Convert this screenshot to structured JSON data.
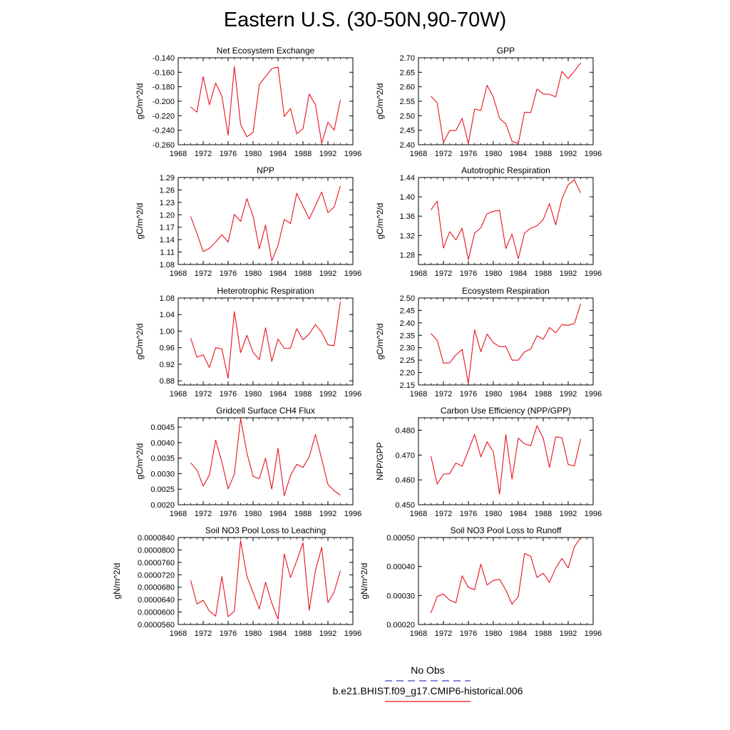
{
  "figure": {
    "title": "Eastern U.S. (30-50N,90-70W)",
    "line_color": "#e8131c",
    "obs_color": "#3b45c8"
  },
  "legend": {
    "obs_label": "No Obs",
    "model_label": "b.e21.BHIST.f09_g17.CMIP6-historical.006"
  },
  "chart_data": [
    {
      "type": "line",
      "title": "Net Ecosystem Exchange",
      "ylabel": "gC/m^2/d",
      "xlim": [
        1968,
        1996
      ],
      "xticks": [
        "1968",
        "1972",
        "1976",
        "1980",
        "1984",
        "1988",
        "1992",
        "1996"
      ],
      "ylim": [
        -0.26,
        -0.14
      ],
      "yticks": [
        "-0.260",
        "-0.240",
        "-0.220",
        "-0.200",
        "-0.180",
        "-0.160",
        "-0.140"
      ],
      "x": [
        1970,
        1971,
        1972,
        1973,
        1974,
        1975,
        1976,
        1977,
        1978,
        1979,
        1980,
        1981,
        1982,
        1983,
        1984,
        1985,
        1986,
        1987,
        1988,
        1989,
        1990,
        1991,
        1992,
        1993,
        1994
      ],
      "series": [
        {
          "values": [
            -0.208,
            -0.215,
            -0.166,
            -0.205,
            -0.175,
            -0.193,
            -0.247,
            -0.152,
            -0.232,
            -0.249,
            -0.243,
            -0.177,
            -0.166,
            -0.155,
            -0.153,
            -0.221,
            -0.21,
            -0.245,
            -0.238,
            -0.19,
            -0.205,
            -0.258,
            -0.229,
            -0.24,
            -0.198
          ]
        }
      ]
    },
    {
      "type": "line",
      "title": "GPP",
      "ylabel": "gC/m^2/d",
      "xlim": [
        1968,
        1996
      ],
      "xticks": [
        "1968",
        "1972",
        "1976",
        "1980",
        "1984",
        "1988",
        "1992",
        "1996"
      ],
      "ylim": [
        2.4,
        2.7
      ],
      "yticks": [
        "2.40",
        "2.45",
        "2.50",
        "2.55",
        "2.60",
        "2.65",
        "2.70"
      ],
      "x": [
        1970,
        1971,
        1972,
        1973,
        1974,
        1975,
        1976,
        1977,
        1978,
        1979,
        1980,
        1981,
        1982,
        1983,
        1984,
        1985,
        1986,
        1987,
        1988,
        1989,
        1990,
        1991,
        1992,
        1993,
        1994
      ],
      "series": [
        {
          "values": [
            2.567,
            2.545,
            2.408,
            2.449,
            2.449,
            2.491,
            2.404,
            2.523,
            2.518,
            2.605,
            2.564,
            2.491,
            2.472,
            2.412,
            2.404,
            2.512,
            2.511,
            2.592,
            2.575,
            2.574,
            2.565,
            2.653,
            2.628,
            2.654,
            2.682
          ]
        }
      ]
    },
    {
      "type": "line",
      "title": "NPP",
      "ylabel": "gC/m^2/d",
      "xlim": [
        1968,
        1996
      ],
      "xticks": [
        "1968",
        "1972",
        "1976",
        "1980",
        "1984",
        "1988",
        "1992",
        "1996"
      ],
      "ylim": [
        1.08,
        1.29
      ],
      "yticks": [
        "1.08",
        "1.11",
        "1.14",
        "1.17",
        "1.20",
        "1.23",
        "1.26",
        "1.29"
      ],
      "x": [
        1970,
        1971,
        1972,
        1973,
        1974,
        1975,
        1976,
        1977,
        1978,
        1979,
        1980,
        1981,
        1982,
        1983,
        1984,
        1985,
        1986,
        1987,
        1988,
        1989,
        1990,
        1991,
        1992,
        1993,
        1994
      ],
      "series": [
        {
          "values": [
            1.196,
            1.155,
            1.111,
            1.119,
            1.134,
            1.152,
            1.134,
            1.201,
            1.184,
            1.239,
            1.197,
            1.118,
            1.175,
            1.089,
            1.126,
            1.189,
            1.179,
            1.252,
            1.221,
            1.19,
            1.222,
            1.255,
            1.205,
            1.219,
            1.27
          ]
        }
      ]
    },
    {
      "type": "line",
      "title": "Autotrophic Respiration",
      "ylabel": "gC/m^2/d",
      "xlim": [
        1968,
        1996
      ],
      "xticks": [
        "1968",
        "1972",
        "1976",
        "1980",
        "1984",
        "1988",
        "1992",
        "1996"
      ],
      "ylim": [
        1.26,
        1.44
      ],
      "yticks": [
        "1.28",
        "1.32",
        "1.36",
        "1.40",
        "1.44"
      ],
      "x": [
        1970,
        1971,
        1972,
        1973,
        1974,
        1975,
        1976,
        1977,
        1978,
        1979,
        1980,
        1981,
        1982,
        1983,
        1984,
        1985,
        1986,
        1987,
        1988,
        1989,
        1990,
        1991,
        1992,
        1993,
        1994
      ],
      "series": [
        {
          "values": [
            1.373,
            1.391,
            1.294,
            1.328,
            1.311,
            1.335,
            1.27,
            1.325,
            1.336,
            1.365,
            1.37,
            1.372,
            1.293,
            1.323,
            1.272,
            1.325,
            1.335,
            1.34,
            1.353,
            1.386,
            1.342,
            1.396,
            1.425,
            1.435,
            1.408
          ]
        }
      ]
    },
    {
      "type": "line",
      "title": "Heterotrophic Respiration",
      "ylabel": "gC/m^2/d",
      "xlim": [
        1968,
        1996
      ],
      "xticks": [
        "1968",
        "1972",
        "1976",
        "1980",
        "1984",
        "1988",
        "1992",
        "1996"
      ],
      "ylim": [
        0.87,
        1.08
      ],
      "yticks": [
        "0.88",
        "0.92",
        "0.96",
        "1.00",
        "1.04",
        "1.08"
      ],
      "x": [
        1970,
        1971,
        1972,
        1973,
        1974,
        1975,
        1976,
        1977,
        1978,
        1979,
        1980,
        1981,
        1982,
        1983,
        1984,
        1985,
        1986,
        1987,
        1988,
        1989,
        1990,
        1991,
        1992,
        1993,
        1994
      ],
      "series": [
        {
          "values": [
            0.983,
            0.937,
            0.943,
            0.912,
            0.96,
            0.957,
            0.886,
            1.047,
            0.948,
            0.99,
            0.949,
            0.931,
            1.008,
            0.927,
            0.981,
            0.958,
            0.959,
            1.006,
            0.979,
            0.993,
            1.016,
            0.997,
            0.967,
            0.965,
            1.071
          ]
        }
      ]
    },
    {
      "type": "line",
      "title": "Ecosystem Respiration",
      "ylabel": "gC/m^2/d",
      "xlim": [
        1968,
        1996
      ],
      "xticks": [
        "1968",
        "1972",
        "1976",
        "1980",
        "1984",
        "1988",
        "1992",
        "1996"
      ],
      "ylim": [
        2.15,
        2.5
      ],
      "yticks": [
        "2.15",
        "2.20",
        "2.25",
        "2.30",
        "2.35",
        "2.40",
        "2.45",
        "2.50"
      ],
      "x": [
        1970,
        1971,
        1972,
        1973,
        1974,
        1975,
        1976,
        1977,
        1978,
        1979,
        1980,
        1981,
        1982,
        1983,
        1984,
        1985,
        1986,
        1987,
        1988,
        1989,
        1990,
        1991,
        1992,
        1993,
        1994
      ],
      "series": [
        {
          "values": [
            2.357,
            2.33,
            2.238,
            2.239,
            2.271,
            2.293,
            2.156,
            2.372,
            2.284,
            2.355,
            2.32,
            2.304,
            2.305,
            2.25,
            2.25,
            2.283,
            2.295,
            2.348,
            2.334,
            2.381,
            2.36,
            2.393,
            2.39,
            2.397,
            2.477
          ]
        }
      ]
    },
    {
      "type": "line",
      "title": "Gridcell Surface CH4 Flux",
      "ylabel": "gC/m^2/d",
      "xlim": [
        1968,
        1996
      ],
      "xticks": [
        "1968",
        "1972",
        "1976",
        "1980",
        "1984",
        "1988",
        "1992",
        "1996"
      ],
      "ylim": [
        0.002,
        0.0048
      ],
      "yticks": [
        "0.0020",
        "0.0025",
        "0.0030",
        "0.0035",
        "0.0040",
        "0.0045"
      ],
      "x": [
        1970,
        1971,
        1972,
        1973,
        1974,
        1975,
        1976,
        1977,
        1978,
        1979,
        1980,
        1981,
        1982,
        1983,
        1984,
        1985,
        1986,
        1987,
        1988,
        1989,
        1990,
        1991,
        1992,
        1993,
        1994
      ],
      "series": [
        {
          "values": [
            0.00335,
            0.00312,
            0.0026,
            0.00296,
            0.00408,
            0.00337,
            0.00251,
            0.00298,
            0.00478,
            0.00368,
            0.00291,
            0.00284,
            0.0035,
            0.0025,
            0.00382,
            0.00229,
            0.00294,
            0.0033,
            0.0032,
            0.00354,
            0.00426,
            0.00347,
            0.00265,
            0.00245,
            0.00231
          ]
        }
      ]
    },
    {
      "type": "line",
      "title": "Carbon Use Efficiency (NPP/GPP)",
      "ylabel": "NPP/GPP",
      "xlim": [
        1968,
        1996
      ],
      "xticks": [
        "1968",
        "1972",
        "1976",
        "1980",
        "1984",
        "1988",
        "1992",
        "1996"
      ],
      "ylim": [
        0.45,
        0.485
      ],
      "yticks": [
        "0.450",
        "0.460",
        "0.470",
        "0.480"
      ],
      "x": [
        1970,
        1971,
        1972,
        1973,
        1974,
        1975,
        1976,
        1977,
        1978,
        1979,
        1980,
        1981,
        1982,
        1983,
        1984,
        1985,
        1986,
        1987,
        1988,
        1989,
        1990,
        1991,
        1992,
        1993,
        1994
      ],
      "series": [
        {
          "values": [
            0.4695,
            0.4583,
            0.4623,
            0.4625,
            0.4668,
            0.4655,
            0.4718,
            0.4783,
            0.4693,
            0.4753,
            0.4713,
            0.4543,
            0.4782,
            0.4603,
            0.4768,
            0.4745,
            0.4738,
            0.4818,
            0.4768,
            0.465,
            0.4773,
            0.477,
            0.4662,
            0.4656,
            0.4765
          ]
        }
      ]
    },
    {
      "type": "line",
      "title": "Soil NO3 Pool Loss to Leaching",
      "ylabel": "gN/m^2/d",
      "xlim": [
        1968,
        1996
      ],
      "xticks": [
        "1968",
        "1972",
        "1976",
        "1980",
        "1984",
        "1988",
        "1992",
        "1996"
      ],
      "ylim": [
        5.6e-05,
        8.4e-05
      ],
      "yticks": [
        "0.0000560",
        "0.0000600",
        "0.0000640",
        "0.0000680",
        "0.0000720",
        "0.0000760",
        "0.0000800",
        "0.0000840"
      ],
      "x": [
        1970,
        1971,
        1972,
        1973,
        1974,
        1975,
        1976,
        1977,
        1978,
        1979,
        1980,
        1981,
        1982,
        1983,
        1984,
        1985,
        1986,
        1987,
        1988,
        1989,
        1990,
        1991,
        1992,
        1993,
        1994
      ],
      "series": [
        {
          "values": [
            7.02e-05,
            6.26e-05,
            6.38e-05,
            6.03e-05,
            5.87e-05,
            7.14e-05,
            5.85e-05,
            6.03e-05,
            8.3e-05,
            7.16e-05,
            6.63e-05,
            6.1e-05,
            6.96e-05,
            6.29e-05,
            5.77e-05,
            7.87e-05,
            7.11e-05,
            7.65e-05,
            8.23e-05,
            6.06e-05,
            7.34e-05,
            8.08e-05,
            6.3e-05,
            6.65e-05,
            7.33e-05
          ]
        }
      ]
    },
    {
      "type": "line",
      "title": "Soil NO3 Pool Loss to Runoff",
      "ylabel": "gN/m^2/d",
      "xlim": [
        1968,
        1996
      ],
      "xticks": [
        "1968",
        "1972",
        "1976",
        "1980",
        "1984",
        "1988",
        "1992",
        "1996"
      ],
      "ylim": [
        0.0002,
        0.0005
      ],
      "yticks": [
        "0.00020",
        "0.00030",
        "0.00040",
        "0.00050"
      ],
      "x": [
        1970,
        1971,
        1972,
        1973,
        1974,
        1975,
        1976,
        1977,
        1978,
        1979,
        1980,
        1981,
        1982,
        1983,
        1984,
        1985,
        1986,
        1987,
        1988,
        1989,
        1990,
        1991,
        1992,
        1993,
        1994
      ],
      "series": [
        {
          "values": [
            0.00024,
            0.000297,
            0.000305,
            0.000284,
            0.000275,
            0.000368,
            0.000328,
            0.00032,
            0.000408,
            0.000336,
            0.000352,
            0.000356,
            0.000319,
            0.00027,
            0.000296,
            0.000445,
            0.000435,
            0.000362,
            0.000377,
            0.000345,
            0.000395,
            0.000428,
            0.000395,
            0.000468,
            0.0005
          ]
        }
      ]
    }
  ]
}
